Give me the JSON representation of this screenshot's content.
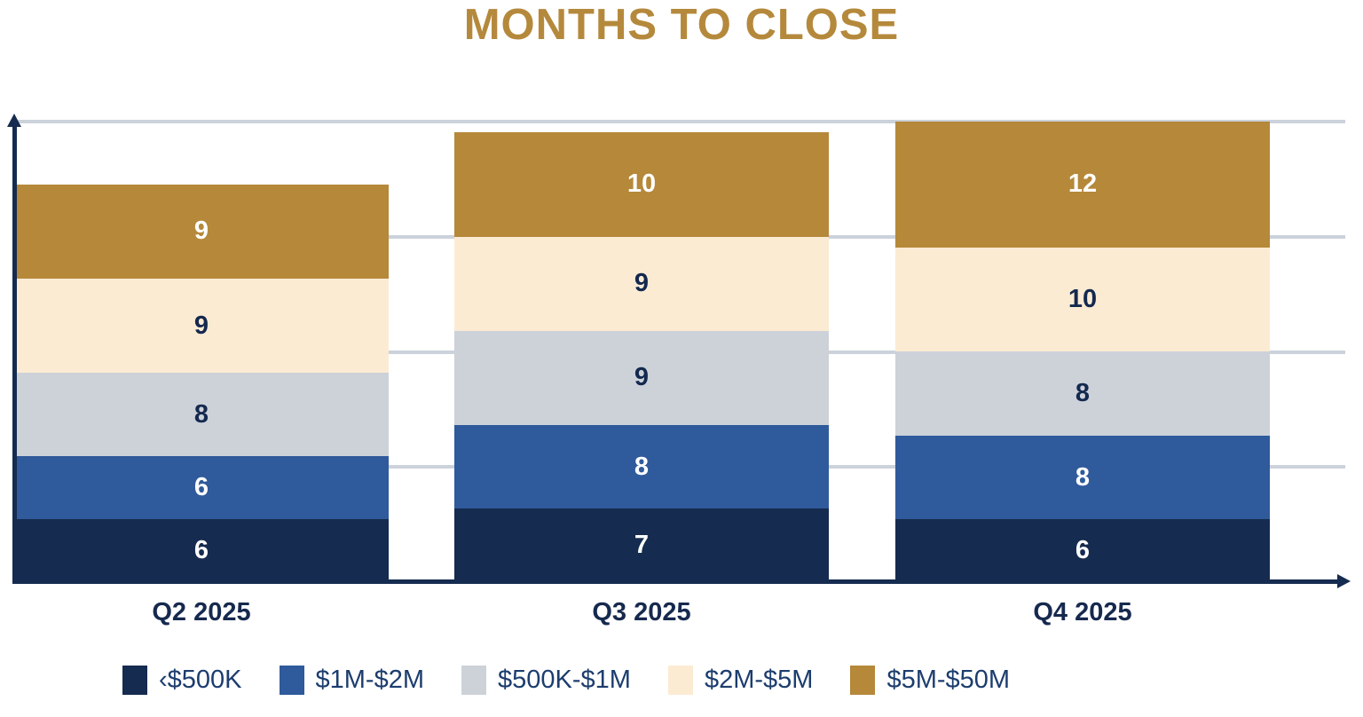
{
  "chart_data": {
    "type": "bar",
    "stacked": true,
    "title": "MONTHS TO CLOSE",
    "categories": [
      "Q2 2025",
      "Q3 2025",
      "Q4 2025"
    ],
    "series": [
      {
        "name": "‹$500K",
        "values": [
          6,
          7,
          6
        ],
        "color": "#152B4F",
        "label_color": "#FFFFFF"
      },
      {
        "name": "$1M-$2M",
        "values": [
          6,
          8,
          8
        ],
        "color": "#2F5A9B",
        "label_color": "#FFFFFF"
      },
      {
        "name": "$500K-$1M",
        "values": [
          8,
          9,
          8
        ],
        "color": "#CDD2D9",
        "label_color": "#14294F"
      },
      {
        "name": "$2M-$5M",
        "values": [
          9,
          9,
          10
        ],
        "color": "#FCEBD3",
        "label_color": "#14294F"
      },
      {
        "name": "$5M-$50M",
        "values": [
          9,
          10,
          12
        ],
        "color": "#B5883A",
        "label_color": "#FFFFFF"
      }
    ],
    "totals": [
      38,
      43,
      44
    ],
    "xlabel": "",
    "ylabel": "",
    "ylim": [
      0,
      44
    ],
    "gridline_values": [
      11,
      22,
      33,
      44
    ],
    "grid": true,
    "data_labels": true,
    "legend_position": "bottom"
  },
  "colors": {
    "title": "#B5893C",
    "axis": "#152B4F",
    "gridline": "#CBD2DB",
    "x_labels": "#16294E",
    "legend_text": "#1C3D6E",
    "background": "#FFFFFF"
  }
}
